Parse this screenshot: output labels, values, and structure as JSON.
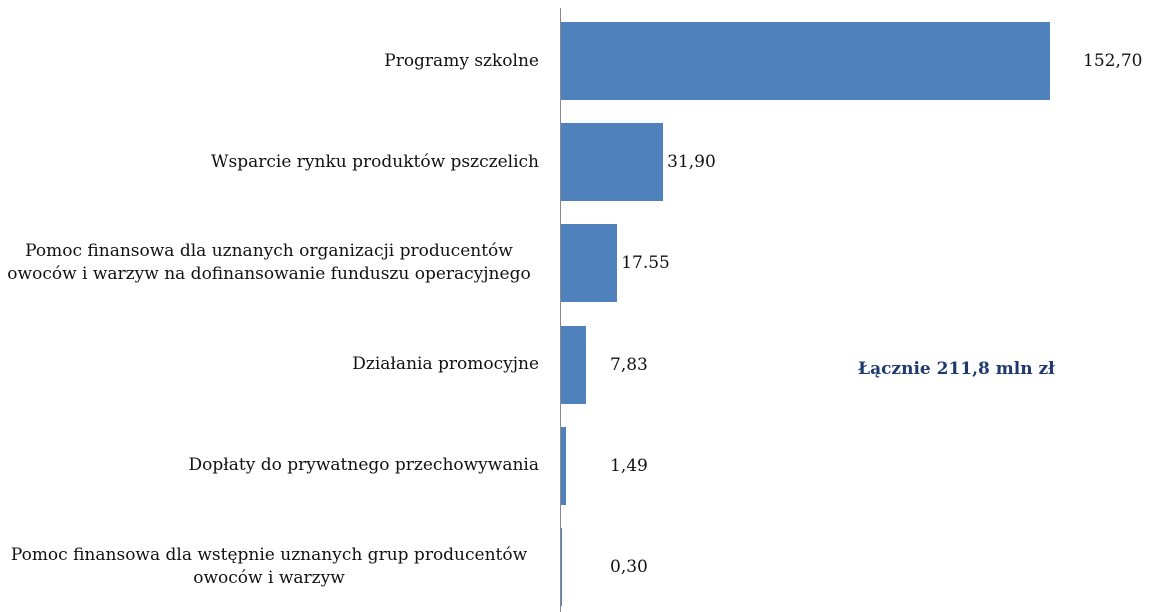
{
  "chart_data": {
    "type": "barh",
    "categories": [
      "Programy szkolne",
      "Wsparcie rynku produktów pszczelich",
      "Pomoc finansowa dla uznanych organizacji producentów owoców i warzyw na dofinansowanie funduszu operacyjnego",
      "Działania promocyjne",
      "Dopłaty do prywatnego przechowywania",
      "Pomoc finansowa dla wstępnie uznanych grup producentów owoców i warzyw"
    ],
    "values": [
      152.7,
      31.9,
      17.55,
      7.83,
      1.49,
      0.3
    ],
    "value_labels": [
      "152,70",
      "31,90",
      "17.55",
      "7,83",
      "1,49",
      "0,30"
    ],
    "color": "#4f81bd",
    "annotation": "Łącznie 211,8 mln zł"
  }
}
